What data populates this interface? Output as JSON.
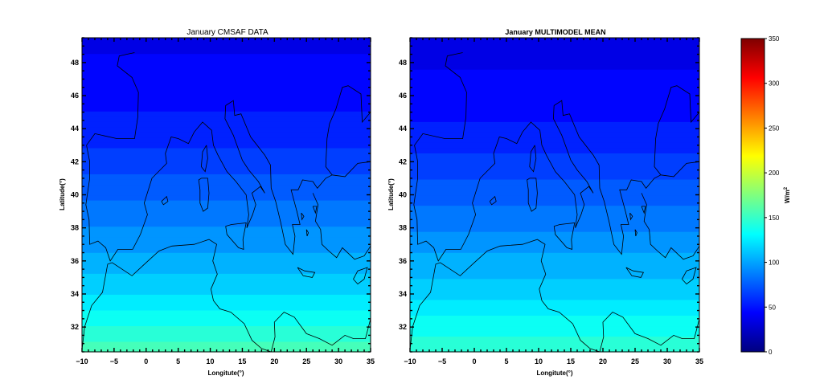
{
  "chart_data": [
    {
      "type": "heatmap",
      "title": "January CMSAF DATA",
      "xlabel": "Longitute(°)",
      "ylabel": "Latitude(°)",
      "xlim": [
        -10,
        35
      ],
      "ylim": [
        30.5,
        49.5
      ],
      "xticks": [
        -10,
        -5,
        0,
        5,
        10,
        15,
        20,
        25,
        30,
        35
      ],
      "yticks": [
        32,
        34,
        36,
        38,
        40,
        42,
        44,
        46,
        48
      ],
      "field": {
        "description_units": "W/m2",
        "lat_band_values": [
          {
            "lat": 31.0,
            "value": 150
          },
          {
            "lat": 32.0,
            "value": 140
          },
          {
            "lat": 33.5,
            "value": 125
          },
          {
            "lat": 35.0,
            "value": 112
          },
          {
            "lat": 37.0,
            "value": 97
          },
          {
            "lat": 39.0,
            "value": 83
          },
          {
            "lat": 41.0,
            "value": 72
          },
          {
            "lat": 43.0,
            "value": 60
          },
          {
            "lat": 45.0,
            "value": 50
          },
          {
            "lat": 47.5,
            "value": 42
          },
          {
            "lat": 49.5,
            "value": 38
          }
        ]
      }
    },
    {
      "type": "heatmap",
      "title": "January MULTIMODEL MEAN",
      "xlabel": "Longitute(°)",
      "ylabel": "Latitude(°)",
      "xlim": [
        -10,
        35
      ],
      "ylim": [
        30.5,
        49.5
      ],
      "xticks": [
        -10,
        -5,
        0,
        5,
        10,
        15,
        20,
        25,
        30,
        35
      ],
      "yticks": [
        32,
        34,
        36,
        38,
        40,
        42,
        44,
        46,
        48
      ],
      "field": {
        "description_units": "W/m2",
        "lat_band_values": [
          {
            "lat": 31.0,
            "value": 145
          },
          {
            "lat": 32.0,
            "value": 135
          },
          {
            "lat": 33.5,
            "value": 122
          },
          {
            "lat": 35.0,
            "value": 110
          },
          {
            "lat": 37.0,
            "value": 96
          },
          {
            "lat": 39.0,
            "value": 82
          },
          {
            "lat": 41.0,
            "value": 70
          },
          {
            "lat": 43.0,
            "value": 57
          },
          {
            "lat": 45.0,
            "value": 47
          },
          {
            "lat": 47.5,
            "value": 40
          },
          {
            "lat": 49.5,
            "value": 36
          }
        ]
      }
    }
  ],
  "colorbar": {
    "label": "W/m2",
    "range": [
      0,
      350
    ],
    "ticks": [
      0,
      50,
      100,
      150,
      200,
      250,
      300,
      350
    ],
    "colormap": "jet",
    "stops": [
      "#00007f",
      "#0000ff",
      "#007fff",
      "#00ffff",
      "#7fff7f",
      "#ffff00",
      "#ff7f00",
      "#ff0000",
      "#7f0000"
    ]
  }
}
